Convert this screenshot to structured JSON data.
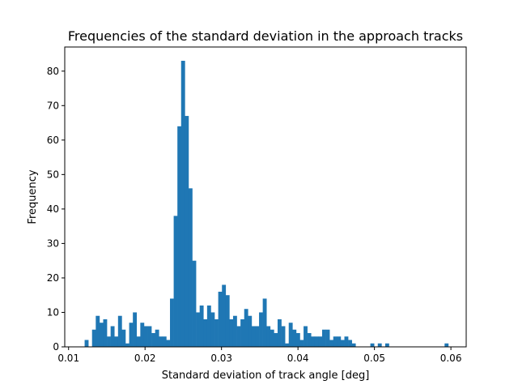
{
  "chart_data": {
    "type": "bar",
    "title": "Frequencies of the standard deviation in the approach tracks",
    "xlabel": "Standard deviation of track angle [deg]",
    "ylabel": "Frequency",
    "xlim": [
      0.0095,
      0.062
    ],
    "ylim": [
      0,
      87
    ],
    "xticks": [
      0.01,
      0.02,
      0.03,
      0.04,
      0.05,
      0.06
    ],
    "xtick_labels": [
      "0.01",
      "0.02",
      "0.03",
      "0.04",
      "0.05",
      "0.06"
    ],
    "yticks": [
      0,
      10,
      20,
      30,
      40,
      50,
      60,
      70,
      80
    ],
    "ytick_labels": [
      "0",
      "10",
      "20",
      "30",
      "40",
      "50",
      "60",
      "70",
      "80"
    ],
    "grid": false,
    "bar_color": "#1f77b4",
    "bin_start": 0.0121,
    "bin_width": 0.0004853,
    "counts": [
      2,
      0,
      5,
      9,
      7,
      8,
      3,
      6,
      3,
      9,
      5,
      1,
      7,
      10,
      3,
      7,
      6,
      6,
      4,
      5,
      3,
      3,
      2,
      14,
      38,
      64,
      83,
      67,
      46,
      25,
      10,
      12,
      8,
      12,
      10,
      8,
      16,
      18,
      15,
      8,
      9,
      6,
      8,
      11,
      9,
      6,
      6,
      10,
      14,
      6,
      5,
      4,
      8,
      6,
      1,
      7,
      5,
      4,
      2,
      6,
      4,
      3,
      3,
      3,
      5,
      5,
      2,
      3,
      3,
      2,
      3,
      2,
      1,
      0,
      0,
      0,
      0,
      1,
      0,
      1,
      0,
      1,
      0,
      0,
      0,
      0,
      0,
      0,
      0,
      0,
      0,
      0,
      0,
      0,
      0,
      0,
      0,
      1
    ]
  }
}
